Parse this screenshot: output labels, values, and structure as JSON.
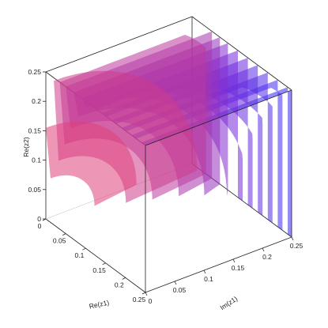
{
  "chart_data": {
    "type": "surface3d",
    "title": "",
    "axes": {
      "x": {
        "label": "Re(z1)",
        "range": [
          0,
          0.25
        ],
        "ticks": [
          0,
          0.05,
          0.1,
          0.15,
          0.2,
          0.25
        ],
        "tick_labels": [
          "0",
          "0.05",
          "0.1",
          "0.15",
          "0.2",
          "0.25"
        ]
      },
      "y": {
        "label": "Im(z1)",
        "range": [
          0,
          0.25
        ],
        "ticks": [
          0,
          0.05,
          0.1,
          0.15,
          0.2,
          0.25
        ],
        "tick_labels": [
          "0",
          "0.05",
          "0.1",
          "0.15",
          "0.2",
          "0.25"
        ]
      },
      "z": {
        "label": "Re(z2)",
        "range": [
          0,
          0.25
        ],
        "ticks": [
          0,
          0.05,
          0.1,
          0.15,
          0.2,
          0.25
        ],
        "tick_labels": [
          "0",
          "0.05",
          "0.1",
          "0.15",
          "0.2",
          "0.25"
        ]
      }
    },
    "grid": false,
    "box": true,
    "colormap": [
      "#e0407a",
      "#7a2ad8",
      "#3b2cf0"
    ],
    "sheets": [
      {
        "x": 0.0,
        "r0": 0.075,
        "r1": 0.155
      },
      {
        "x": 0.02,
        "r0": 0.115,
        "r1": 0.245
      },
      {
        "x": 0.035,
        "r0": 0.15,
        "r1": 0.33
      },
      {
        "x": 0.05,
        "r0": 0.185,
        "r1": 0.38
      },
      {
        "x": 0.07,
        "r0": 0.215,
        "r1": 0.42
      },
      {
        "x": 0.09,
        "r0": 0.24,
        "r1": 0.46
      },
      {
        "x": 0.115,
        "r0": 0.262,
        "r1": 0.48
      },
      {
        "x": 0.14,
        "r0": 0.28,
        "r1": 0.495
      },
      {
        "x": 0.165,
        "r0": 0.3,
        "r1": 0.505
      },
      {
        "x": 0.19,
        "r0": 0.32,
        "r1": 0.515
      },
      {
        "x": 0.215,
        "r0": 0.34,
        "r1": 0.525
      },
      {
        "x": 0.24,
        "r0": 0.36,
        "r1": 0.535
      }
    ]
  }
}
